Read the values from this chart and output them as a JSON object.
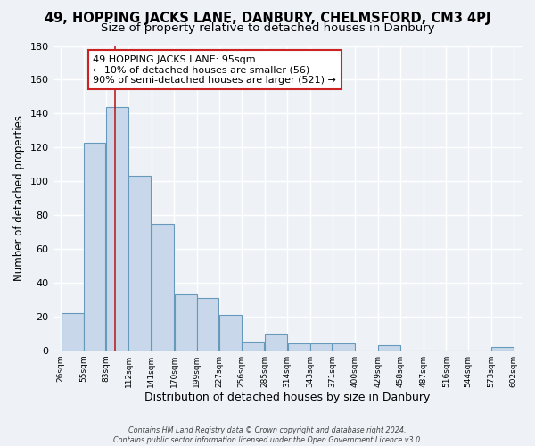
{
  "title1": "49, HOPPING JACKS LANE, DANBURY, CHELMSFORD, CM3 4PJ",
  "title2": "Size of property relative to detached houses in Danbury",
  "xlabel": "Distribution of detached houses by size in Danbury",
  "ylabel": "Number of detached properties",
  "bin_edges": [
    26,
    55,
    83,
    112,
    141,
    170,
    199,
    227,
    256,
    285,
    314,
    343,
    371,
    400,
    429,
    458,
    487,
    516,
    544,
    573,
    602
  ],
  "bar_heights": [
    22,
    123,
    144,
    103,
    75,
    33,
    31,
    21,
    5,
    10,
    4,
    4,
    4,
    0,
    3,
    0,
    0,
    0,
    0,
    2
  ],
  "bar_color": "#c8d8ea",
  "bar_edgecolor": "#6699bb",
  "vline_x": 95,
  "vline_color": "#bb2222",
  "annotation_lines": [
    "49 HOPPING JACKS LANE: 95sqm",
    "← 10% of detached houses are smaller (56)",
    "90% of semi-detached houses are larger (521) →"
  ],
  "annotation_fontsize": 8.0,
  "footer_line1": "Contains HM Land Registry data © Crown copyright and database right 2024.",
  "footer_line2": "Contains public sector information licensed under the Open Government Licence v3.0.",
  "ylim": [
    0,
    180
  ],
  "yticks": [
    0,
    20,
    40,
    60,
    80,
    100,
    120,
    140,
    160,
    180
  ],
  "background_color": "#eef2f7",
  "grid_color": "#ffffff",
  "title1_fontsize": 10.5,
  "title2_fontsize": 9.5
}
